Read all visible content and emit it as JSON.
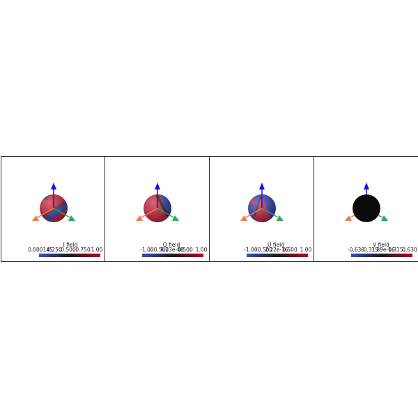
{
  "panels": [
    {
      "title": "I field",
      "ticks": [
        "0.000145",
        "0.250",
        "0.500",
        "0.750",
        "1.00"
      ],
      "colorbar": [
        "#3b4cc0",
        "#1a1a1a",
        "#b40426"
      ]
    },
    {
      "title": "Q field",
      "ticks": [
        "-1.00",
        "-0.500",
        "8.23e-08",
        "0.500",
        "1.00"
      ],
      "colorbar": [
        "#3b4cc0",
        "#1a1a1a",
        "#b40426"
      ]
    },
    {
      "title": "U field",
      "ticks": [
        "-1.00",
        "-0.500",
        "2.22e-16",
        "0.500",
        "1.00"
      ],
      "colorbar": [
        "#3b4cc0",
        "#1a1a1a",
        "#b40426"
      ]
    },
    {
      "title": "V field",
      "ticks": [
        "-0.630",
        "-0.315",
        "1.89e-16",
        "0.315",
        "0.630"
      ],
      "colorbar": [
        "#3b4cc0",
        "#1a1a1a",
        "#b40426"
      ]
    }
  ],
  "axes_colors": {
    "z": "#1010ee",
    "x": "#f07a50",
    "y": "#2aa860"
  },
  "sphere_colors": {
    "red": "#c8102e",
    "blue": "#2233aa",
    "dark": "#0a0a0a"
  }
}
